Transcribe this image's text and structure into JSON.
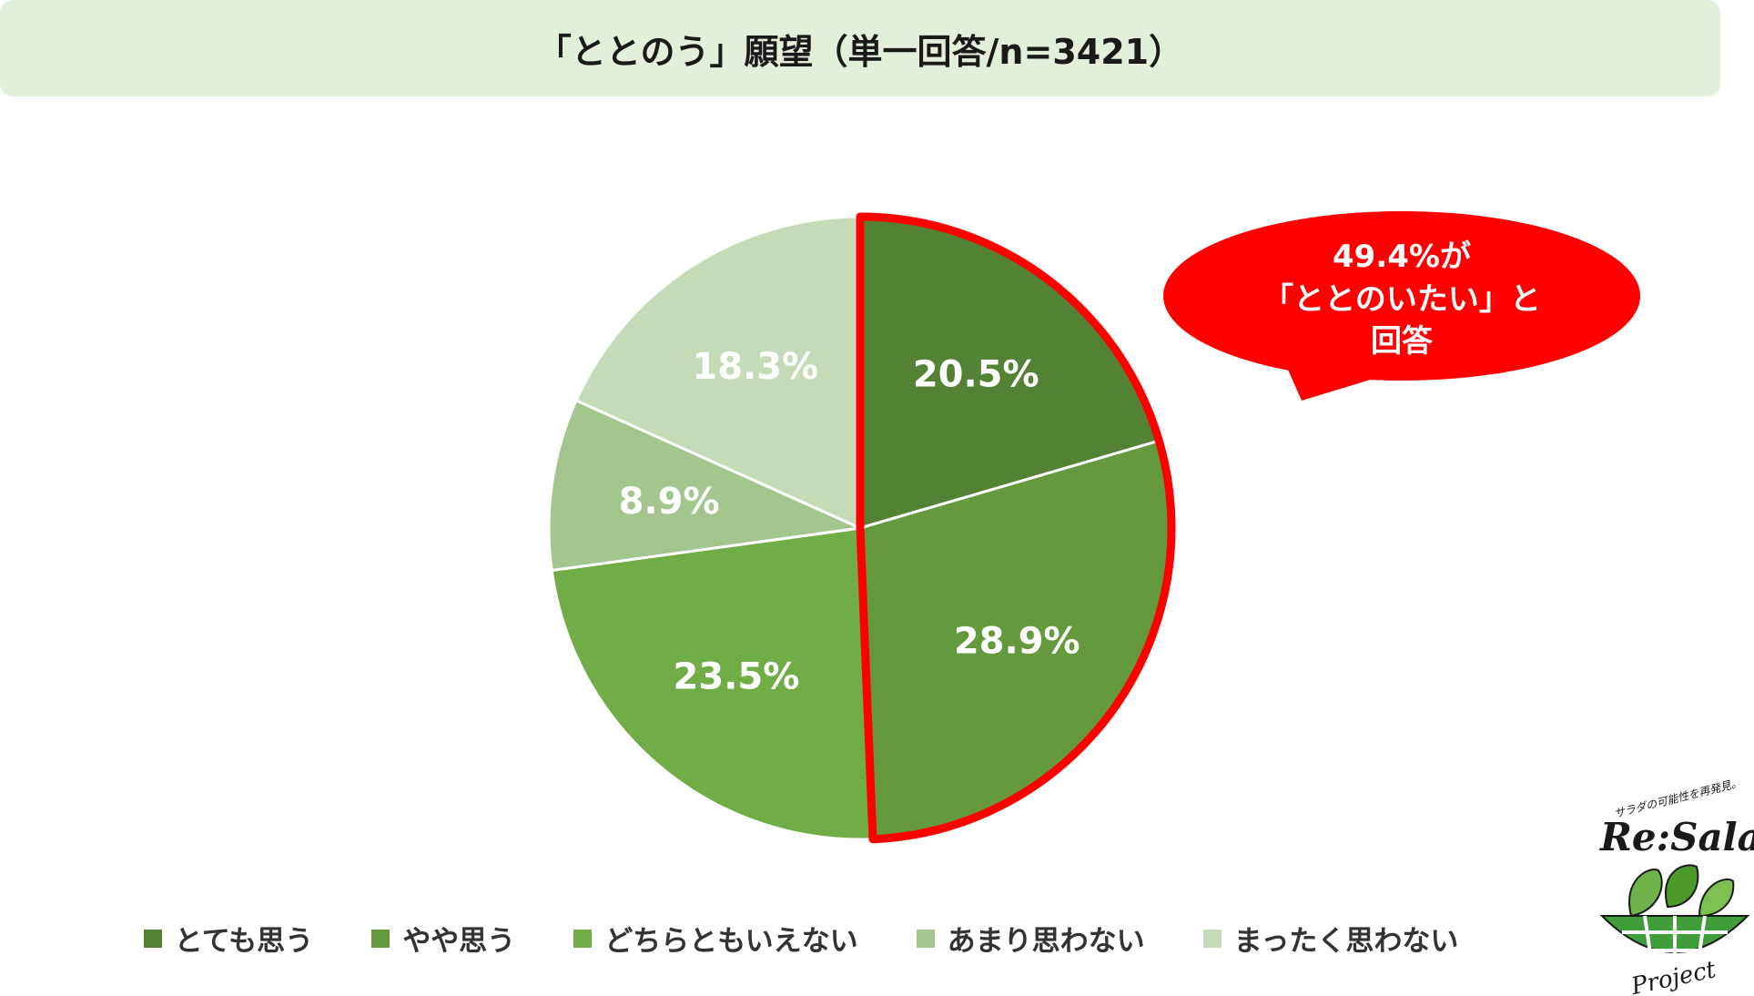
{
  "title": "「ととのう」願望（単一回答/n=3421）",
  "callout": {
    "line1": "49.4%が",
    "line2": "「ととのいたい」と",
    "line3": "回答",
    "color": "#ff0000"
  },
  "logo": {
    "tagline": "サラダの可能性を再発見。",
    "name": "Re:Salad",
    "sub": "Project"
  },
  "chart_data": {
    "type": "pie",
    "title": "「ととのう」願望（単一回答/n=3421）",
    "start_angle_deg": 0,
    "direction": "clockwise",
    "highlight": {
      "slices": [
        "とても思う",
        "やや思う"
      ],
      "total_label": "49.4%",
      "color": "#ff0000"
    },
    "slices": [
      {
        "label": "とても思う",
        "value": 20.5,
        "value_label": "20.5%",
        "color": "#548235"
      },
      {
        "label": "やや思う",
        "value": 28.9,
        "value_label": "28.9%",
        "color": "#649a3d"
      },
      {
        "label": "どちらともいえない",
        "value": 23.5,
        "value_label": "23.5%",
        "color": "#70ad47"
      },
      {
        "label": "あまり思わない",
        "value": 8.9,
        "value_label": "8.9%",
        "color": "#a3c68e"
      },
      {
        "label": "まったく思わない",
        "value": 18.3,
        "value_label": "18.3%",
        "color": "#c5dbb8"
      }
    ],
    "legend_position": "bottom"
  }
}
